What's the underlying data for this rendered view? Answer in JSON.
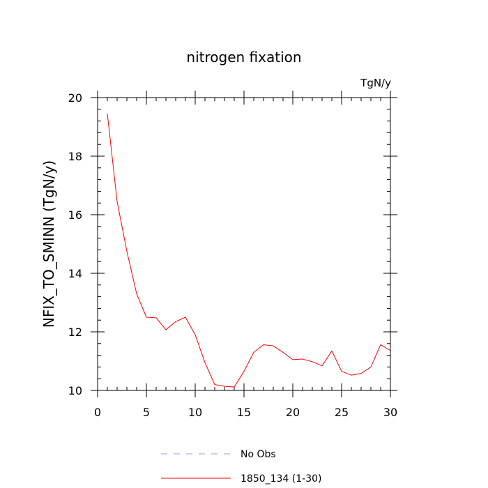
{
  "chart_data": {
    "type": "line",
    "title": "nitrogen fixation",
    "units_label": "TgN/y",
    "xlabel": "",
    "ylabel": "NFIX_TO_SMINN  (TgN/y)",
    "xlim": [
      0,
      30
    ],
    "ylim": [
      10,
      20
    ],
    "x_ticks": [
      0,
      5,
      10,
      15,
      20,
      25,
      30
    ],
    "y_ticks": [
      10,
      12,
      14,
      16,
      18,
      20
    ],
    "x_minor_step": 1,
    "y_minor_step": 0.4,
    "grid": false,
    "legend_position": "bottom",
    "series": [
      {
        "name": "1850_134 (1-30)",
        "color": "#ff0000",
        "dash": "solid",
        "x": [
          1,
          2,
          3,
          4,
          5,
          6,
          7,
          8,
          9,
          10,
          11,
          12,
          13,
          14,
          15,
          16,
          17,
          18,
          19,
          20,
          21,
          22,
          23,
          24,
          25,
          26,
          27,
          28,
          29,
          30
        ],
        "values": [
          19.45,
          16.45,
          14.75,
          13.3,
          12.5,
          12.48,
          12.07,
          12.35,
          12.5,
          11.9,
          10.95,
          10.2,
          10.14,
          10.12,
          10.65,
          11.3,
          11.56,
          11.52,
          11.3,
          11.05,
          11.07,
          10.98,
          10.84,
          11.35,
          10.65,
          10.52,
          10.58,
          10.8,
          11.56,
          11.36
        ]
      }
    ],
    "legend": [
      {
        "label": "No Obs",
        "color": "#9999ff",
        "dash": "dashed"
      },
      {
        "label": "1850_134 (1-30)",
        "color": "#ff0000",
        "dash": "solid"
      }
    ]
  }
}
